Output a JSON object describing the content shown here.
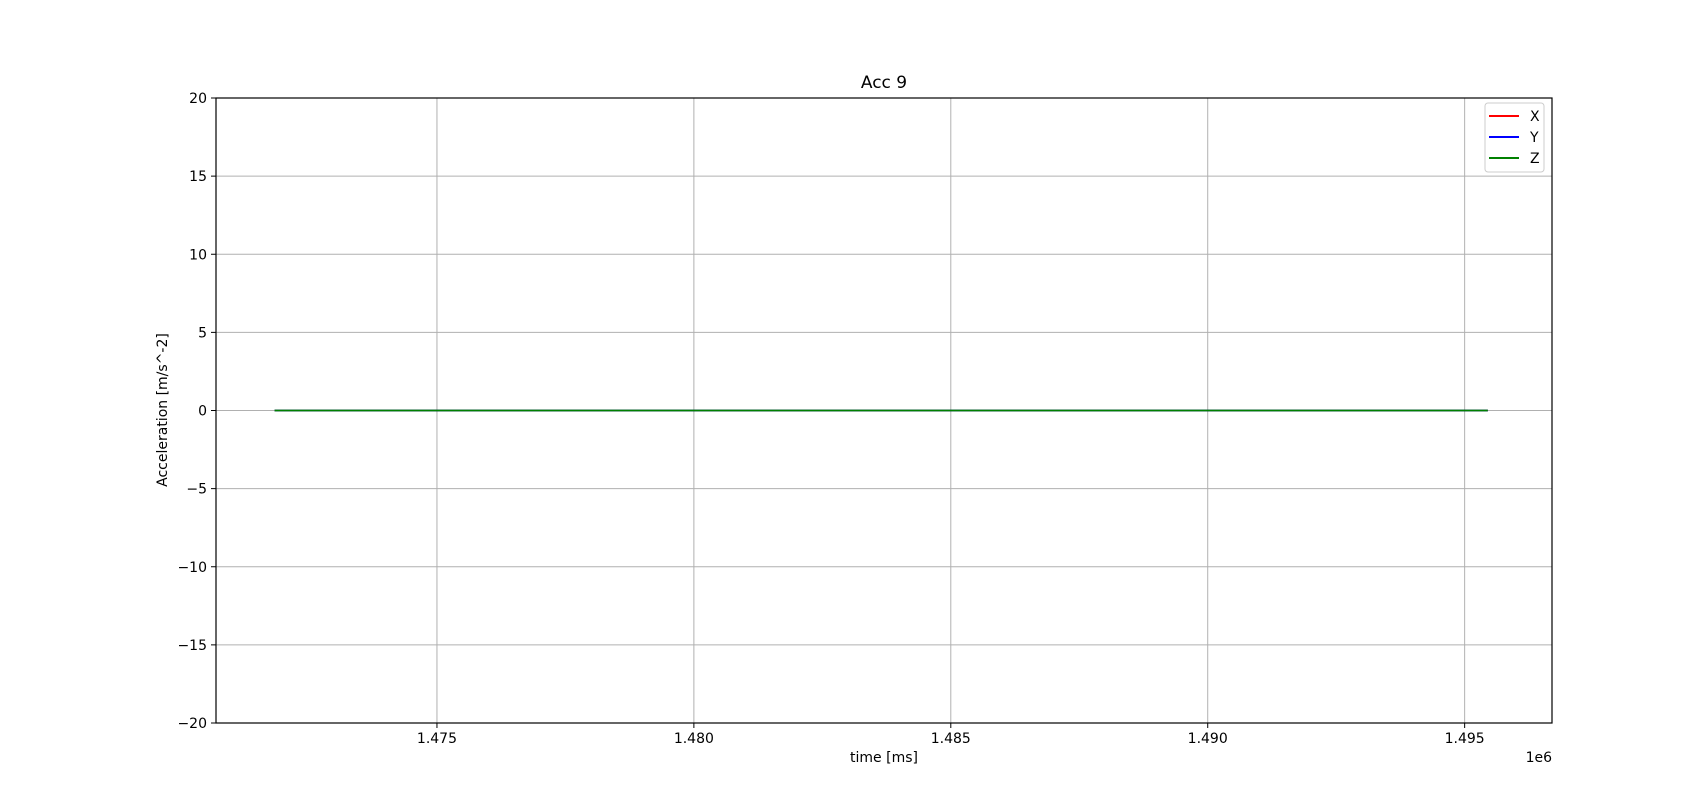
{
  "chart_data": {
    "type": "line",
    "title": "Acc 9",
    "xlabel": "time [ms]",
    "ylabel": "Acceleration [m/s^-2]",
    "x_offset_label": "1e6",
    "x_scale": 1000000,
    "xlim": [
      1470700,
      1496700
    ],
    "ylim": [
      -20,
      20
    ],
    "x_ticks": [
      1475000,
      1480000,
      1485000,
      1490000,
      1495000
    ],
    "x_tick_labels": [
      "1.475",
      "1.480",
      "1.485",
      "1.490",
      "1.495"
    ],
    "y_ticks": [
      -20,
      -15,
      -10,
      -5,
      0,
      5,
      10,
      15,
      20
    ],
    "y_tick_labels": [
      "−20",
      "−15",
      "−10",
      "−5",
      "0",
      "5",
      "10",
      "15",
      "20"
    ],
    "grid": true,
    "legend_position": "top-right",
    "series": [
      {
        "name": "X",
        "color": "#ff0000",
        "x": [
          1471840,
          1495450
        ],
        "y": [
          0,
          0
        ]
      },
      {
        "name": "Y",
        "color": "#0000ff",
        "x": [
          1471840,
          1495450
        ],
        "y": [
          0,
          0
        ]
      },
      {
        "name": "Z",
        "color": "#008000",
        "x": [
          1471840,
          1495450
        ],
        "y": [
          0,
          0
        ]
      }
    ]
  }
}
